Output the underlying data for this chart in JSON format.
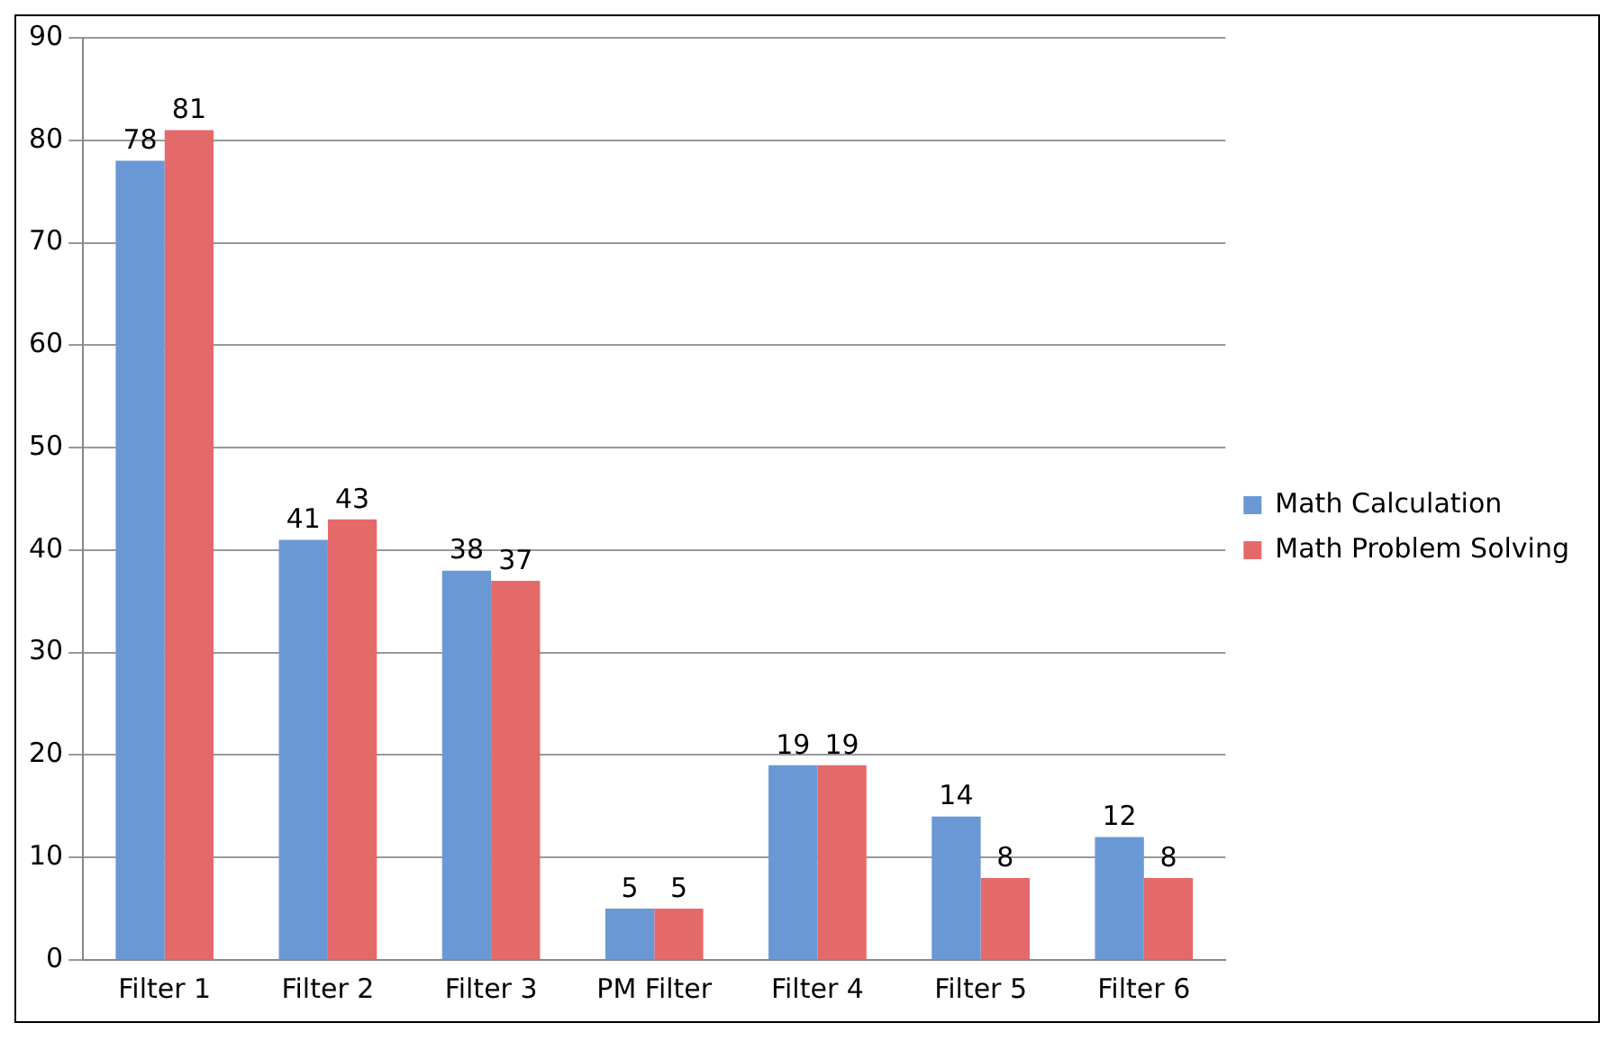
{
  "chart_data": {
    "type": "bar",
    "categories": [
      "Filter 1",
      "Filter 2",
      "Filter 3",
      "PM Filter",
      "Filter 4",
      "Filter 5",
      "Filter 6"
    ],
    "series": [
      {
        "name": "Math Calculation",
        "color": "#6a98d4",
        "values": [
          78,
          41,
          38,
          5,
          19,
          14,
          12
        ]
      },
      {
        "name": "Math Problem Solving",
        "color": "#e46a6a",
        "values": [
          81,
          43,
          37,
          5,
          19,
          8,
          8
        ]
      }
    ],
    "ylim": [
      0,
      90
    ],
    "yticks": [
      0,
      10,
      20,
      30,
      40,
      50,
      60,
      70,
      80,
      90
    ],
    "grid": "y",
    "legend": "right",
    "data_labels": true
  }
}
